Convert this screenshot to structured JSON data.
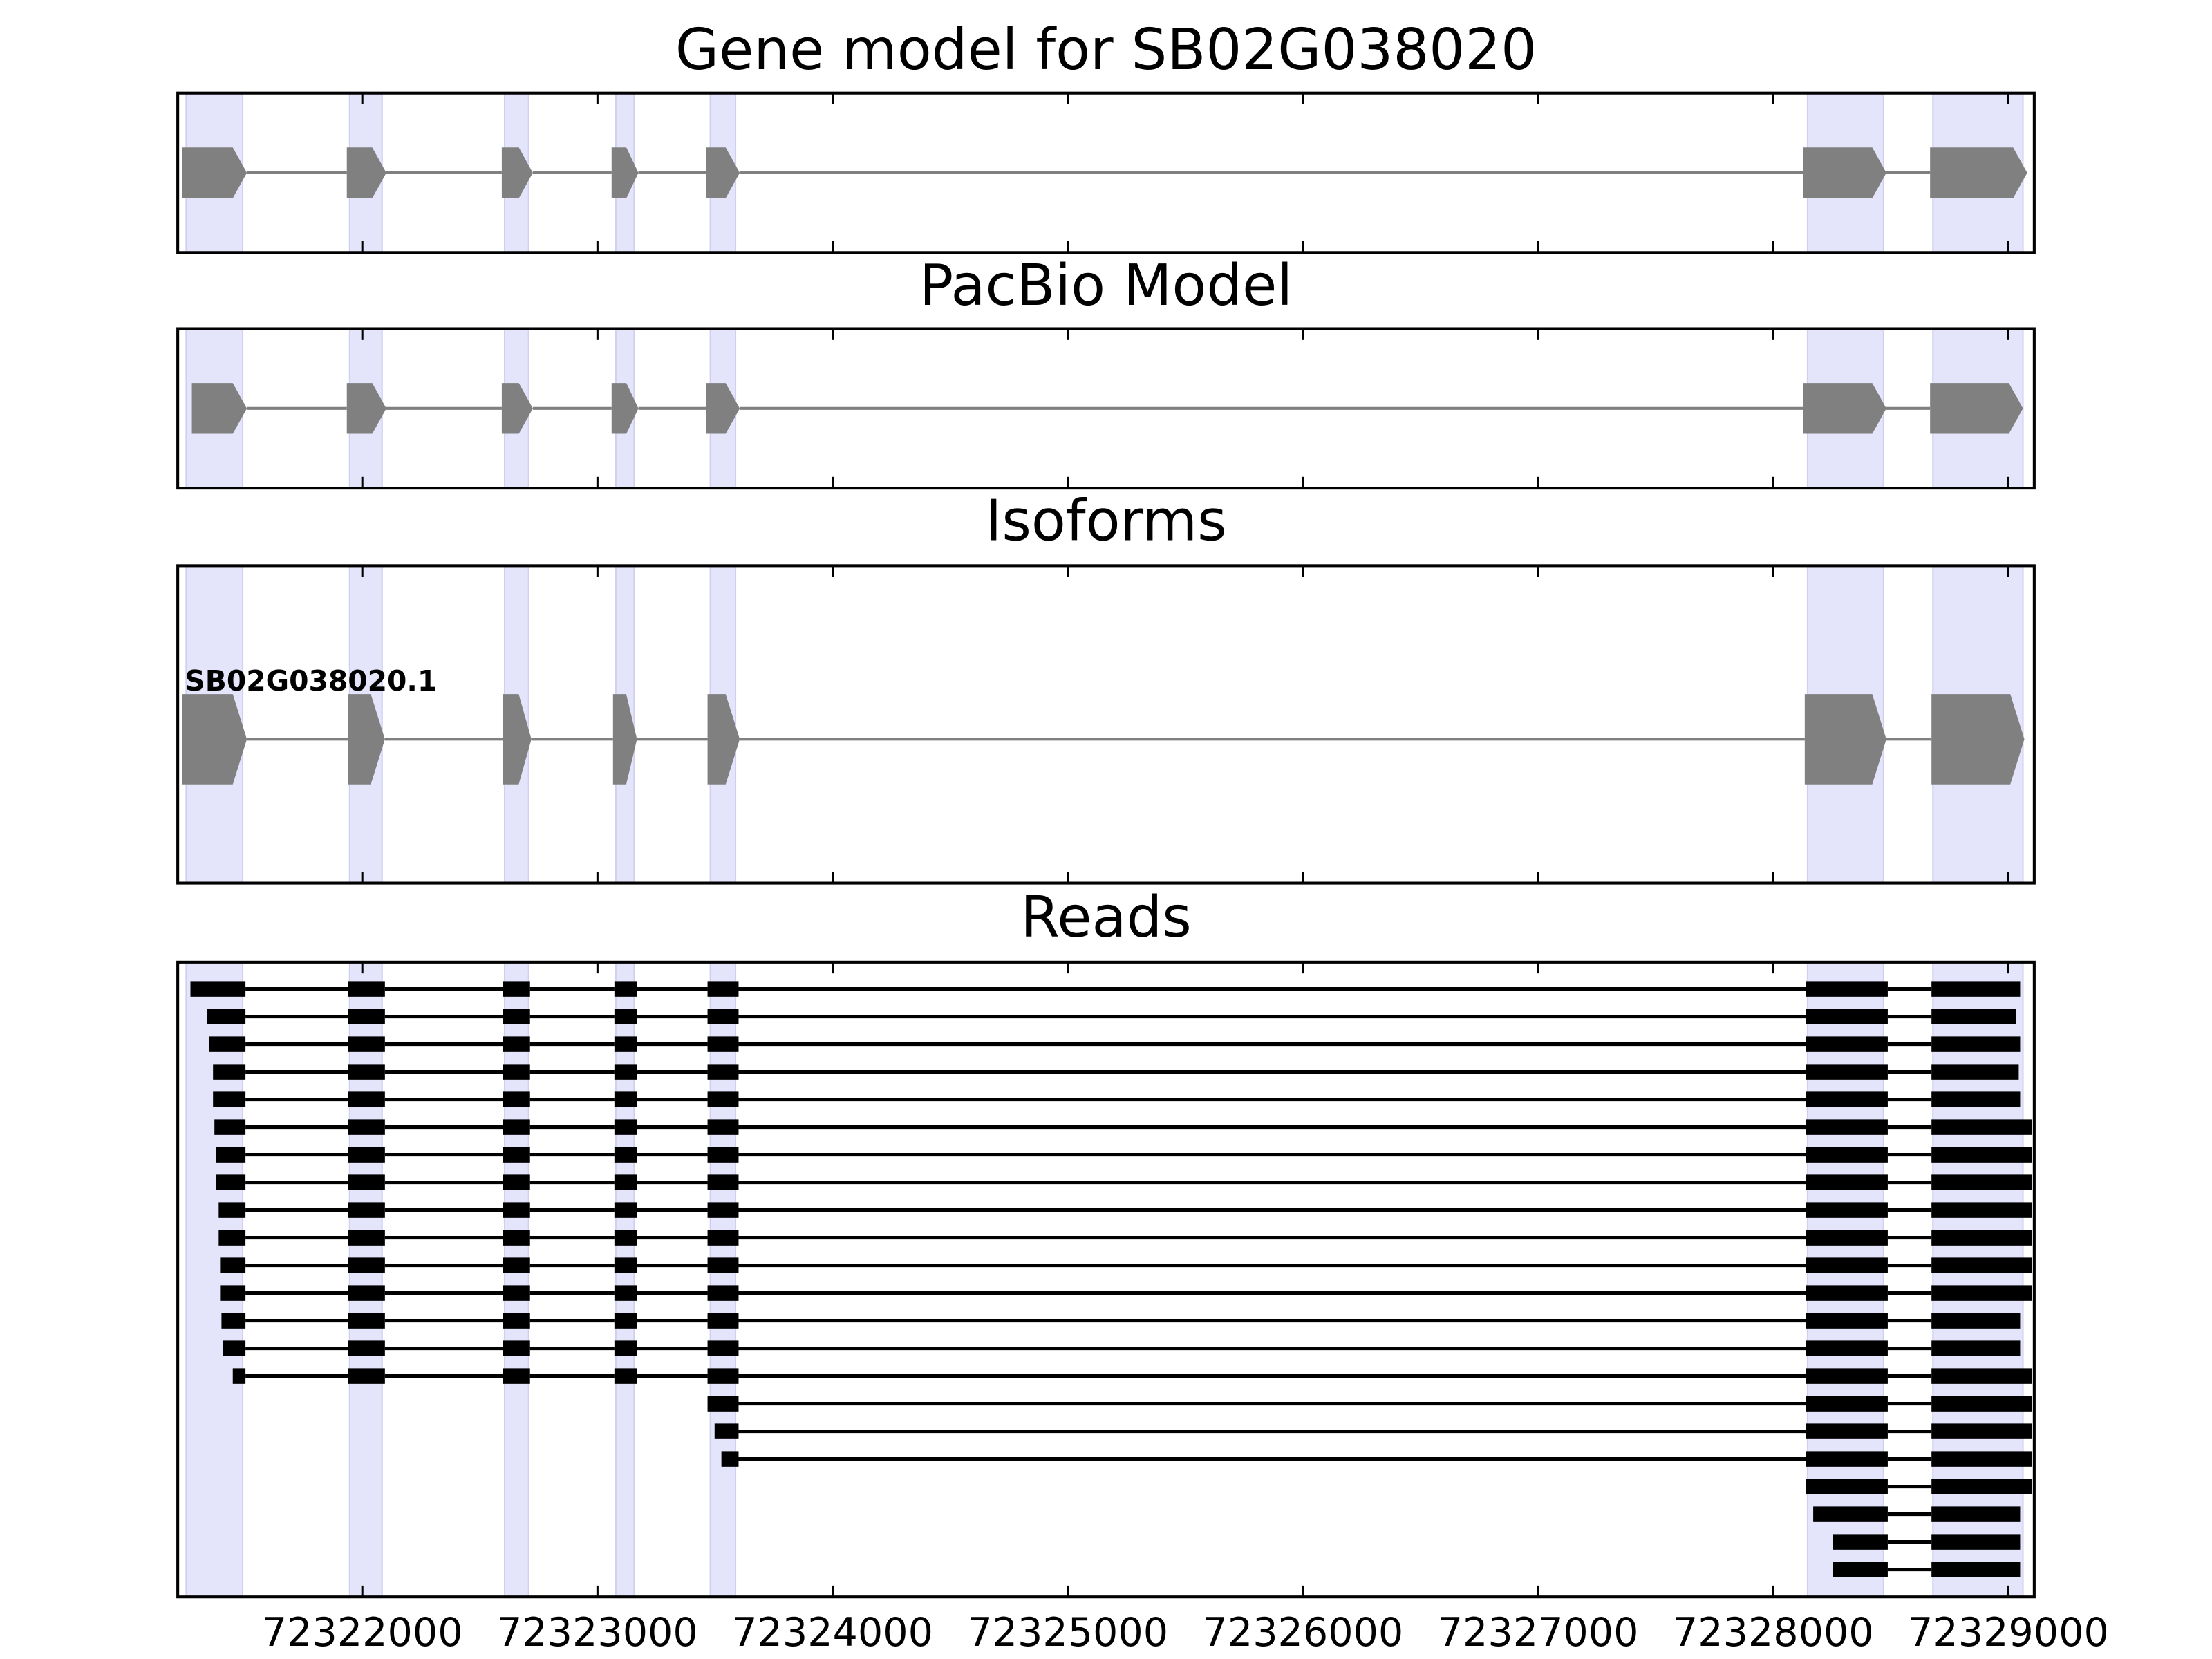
{
  "chart_data": {
    "type": "gene-tracks",
    "xlim": [
      72321215,
      72329110
    ],
    "xticks": [
      72322000,
      72323000,
      72324000,
      72325000,
      72326000,
      72327000,
      72328000,
      72329000
    ],
    "highlight_color": "#e4e4fb",
    "feature_color": "#808080",
    "read_color": "#000000",
    "highlight_regions": [
      [
        72321251,
        72321491
      ],
      [
        72321946,
        72322084
      ],
      [
        72322605,
        72322707
      ],
      [
        72323078,
        72323156
      ],
      [
        72323480,
        72323587
      ],
      [
        72328146,
        72328469
      ],
      [
        72328679,
        72329062
      ]
    ],
    "panels": [
      {
        "type": "model",
        "title": "Gene model for SB02G038020",
        "exons": [
          [
            72321233,
            72321509
          ],
          [
            72321934,
            72322102
          ],
          [
            72322593,
            72322725
          ],
          [
            72323060,
            72323174
          ],
          [
            72323462,
            72323605
          ],
          [
            72328128,
            72328481
          ],
          [
            72328667,
            72329080
          ]
        ]
      },
      {
        "type": "model",
        "title": "PacBio Model",
        "exons": [
          [
            72321275,
            72321509
          ],
          [
            72321934,
            72322102
          ],
          [
            72322593,
            72322725
          ],
          [
            72323060,
            72323174
          ],
          [
            72323462,
            72323605
          ],
          [
            72328128,
            72328481
          ],
          [
            72328667,
            72329062
          ]
        ]
      },
      {
        "type": "isoforms",
        "title": "Isoforms",
        "isoforms": [
          {
            "name": "SB02G038020.1",
            "exons": [
              [
                72321233,
                72321509
              ],
              [
                72321940,
                72322096
              ],
              [
                72322599,
                72322719
              ],
              [
                72323066,
                72323168
              ],
              [
                72323468,
                72323605
              ],
              [
                72328134,
                72328481
              ],
              [
                72328673,
                72329068
              ]
            ]
          }
        ]
      },
      {
        "type": "reads",
        "title": "Reads",
        "reads": [
          [
            [
              72321269,
              72321503
            ],
            [
              72321940,
              72322096
            ],
            [
              72322599,
              72322713
            ],
            [
              72323072,
              72323168
            ],
            [
              72323468,
              72323600
            ],
            [
              72328140,
              72328487
            ],
            [
              72328673,
              72329050
            ]
          ],
          [
            [
              72321341,
              72321503
            ],
            [
              72321940,
              72322096
            ],
            [
              72322599,
              72322713
            ],
            [
              72323072,
              72323168
            ],
            [
              72323468,
              72323600
            ],
            [
              72328140,
              72328487
            ],
            [
              72328673,
              72329032
            ]
          ],
          [
            [
              72321347,
              72321503
            ],
            [
              72321940,
              72322096
            ],
            [
              72322599,
              72322713
            ],
            [
              72323072,
              72323168
            ],
            [
              72323468,
              72323600
            ],
            [
              72328140,
              72328487
            ],
            [
              72328673,
              72329050
            ]
          ],
          [
            [
              72321365,
              72321503
            ],
            [
              72321940,
              72322096
            ],
            [
              72322599,
              72322713
            ],
            [
              72323072,
              72323168
            ],
            [
              72323468,
              72323600
            ],
            [
              72328140,
              72328487
            ],
            [
              72328673,
              72329044
            ]
          ],
          [
            [
              72321365,
              72321503
            ],
            [
              72321940,
              72322096
            ],
            [
              72322599,
              72322713
            ],
            [
              72323072,
              72323168
            ],
            [
              72323468,
              72323600
            ],
            [
              72328140,
              72328487
            ],
            [
              72328673,
              72329050
            ]
          ],
          [
            [
              72321371,
              72321503
            ],
            [
              72321940,
              72322096
            ],
            [
              72322599,
              72322713
            ],
            [
              72323072,
              72323168
            ],
            [
              72323468,
              72323600
            ],
            [
              72328140,
              72328487
            ],
            [
              72328673,
              72329100
            ]
          ],
          [
            [
              72321377,
              72321503
            ],
            [
              72321940,
              72322096
            ],
            [
              72322599,
              72322713
            ],
            [
              72323072,
              72323168
            ],
            [
              72323468,
              72323600
            ],
            [
              72328140,
              72328487
            ],
            [
              72328673,
              72329100
            ]
          ],
          [
            [
              72321377,
              72321503
            ],
            [
              72321940,
              72322096
            ],
            [
              72322599,
              72322713
            ],
            [
              72323072,
              72323168
            ],
            [
              72323468,
              72323600
            ],
            [
              72328140,
              72328487
            ],
            [
              72328673,
              72329100
            ]
          ],
          [
            [
              72321389,
              72321503
            ],
            [
              72321940,
              72322096
            ],
            [
              72322599,
              72322713
            ],
            [
              72323072,
              72323168
            ],
            [
              72323468,
              72323600
            ],
            [
              72328140,
              72328487
            ],
            [
              72328673,
              72329100
            ]
          ],
          [
            [
              72321389,
              72321503
            ],
            [
              72321940,
              72322096
            ],
            [
              72322599,
              72322713
            ],
            [
              72323072,
              72323168
            ],
            [
              72323468,
              72323600
            ],
            [
              72328140,
              72328487
            ],
            [
              72328673,
              72329100
            ]
          ],
          [
            [
              72321395,
              72321503
            ],
            [
              72321940,
              72322096
            ],
            [
              72322599,
              72322713
            ],
            [
              72323072,
              72323168
            ],
            [
              72323468,
              72323600
            ],
            [
              72328140,
              72328487
            ],
            [
              72328673,
              72329100
            ]
          ],
          [
            [
              72321395,
              72321503
            ],
            [
              72321940,
              72322096
            ],
            [
              72322599,
              72322713
            ],
            [
              72323072,
              72323168
            ],
            [
              72323468,
              72323600
            ],
            [
              72328140,
              72328487
            ],
            [
              72328673,
              72329100
            ]
          ],
          [
            [
              72321401,
              72321503
            ],
            [
              72321940,
              72322096
            ],
            [
              72322599,
              72322713
            ],
            [
              72323072,
              72323168
            ],
            [
              72323468,
              72323600
            ],
            [
              72328140,
              72328487
            ],
            [
              72328673,
              72329050
            ]
          ],
          [
            [
              72321407,
              72321503
            ],
            [
              72321940,
              72322096
            ],
            [
              72322599,
              72322713
            ],
            [
              72323072,
              72323168
            ],
            [
              72323468,
              72323600
            ],
            [
              72328140,
              72328487
            ],
            [
              72328673,
              72329050
            ]
          ],
          [
            [
              72321449,
              72321503
            ],
            [
              72321940,
              72322096
            ],
            [
              72322599,
              72322713
            ],
            [
              72323072,
              72323168
            ],
            [
              72323468,
              72323600
            ],
            [
              72328140,
              72328487
            ],
            [
              72328673,
              72329100
            ]
          ],
          [
            [
              72323468,
              72323600
            ],
            [
              72328140,
              72328487
            ],
            [
              72328673,
              72329100
            ]
          ],
          [
            [
              72323498,
              72323600
            ],
            [
              72328140,
              72328487
            ],
            [
              72328673,
              72329100
            ]
          ],
          [
            [
              72323527,
              72323600
            ],
            [
              72328140,
              72328487
            ],
            [
              72328673,
              72329100
            ]
          ],
          [
            [
              72328140,
              72328487
            ],
            [
              72328673,
              72329100
            ]
          ],
          [
            [
              72328170,
              72328487
            ],
            [
              72328673,
              72329050
            ]
          ],
          [
            [
              72328254,
              72328487
            ],
            [
              72328673,
              72329050
            ]
          ],
          [
            [
              72328254,
              72328487
            ],
            [
              72328673,
              72329050
            ]
          ]
        ]
      }
    ]
  }
}
